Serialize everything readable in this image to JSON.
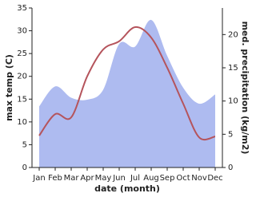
{
  "chart_data": {
    "type": "line",
    "x_label": "date (month)",
    "y_label": "max temp (C)",
    "y2_label": "med. precipitation (kg/m2)",
    "categories": [
      "Jan",
      "Feb",
      "Mar",
      "Apr",
      "May",
      "Jun",
      "Jul",
      "Aug",
      "Sep",
      "Oct",
      "Nov",
      "Dec"
    ],
    "series": [
      {
        "name": "med. precipitation",
        "type": "area",
        "axis": "y2",
        "color": "#aebbf0",
        "values": [
          9.2,
          12.2,
          10.5,
          10.2,
          11.7,
          18.6,
          18.2,
          22.2,
          16.8,
          12.0,
          9.6,
          11.0
        ]
      },
      {
        "name": "max temp",
        "type": "line",
        "color": "#b5545c",
        "values": [
          7.0,
          11.7,
          11.0,
          20.0,
          25.9,
          27.7,
          30.8,
          28.5,
          21.9,
          14.0,
          6.6,
          6.8
        ]
      }
    ],
    "ylim": [
      0,
      35
    ],
    "yticks": [
      0,
      5,
      10,
      15,
      20,
      25,
      30,
      35
    ],
    "y2lim": [
      0,
      24
    ],
    "y2ticks": [
      0,
      5,
      10,
      15,
      20
    ]
  }
}
